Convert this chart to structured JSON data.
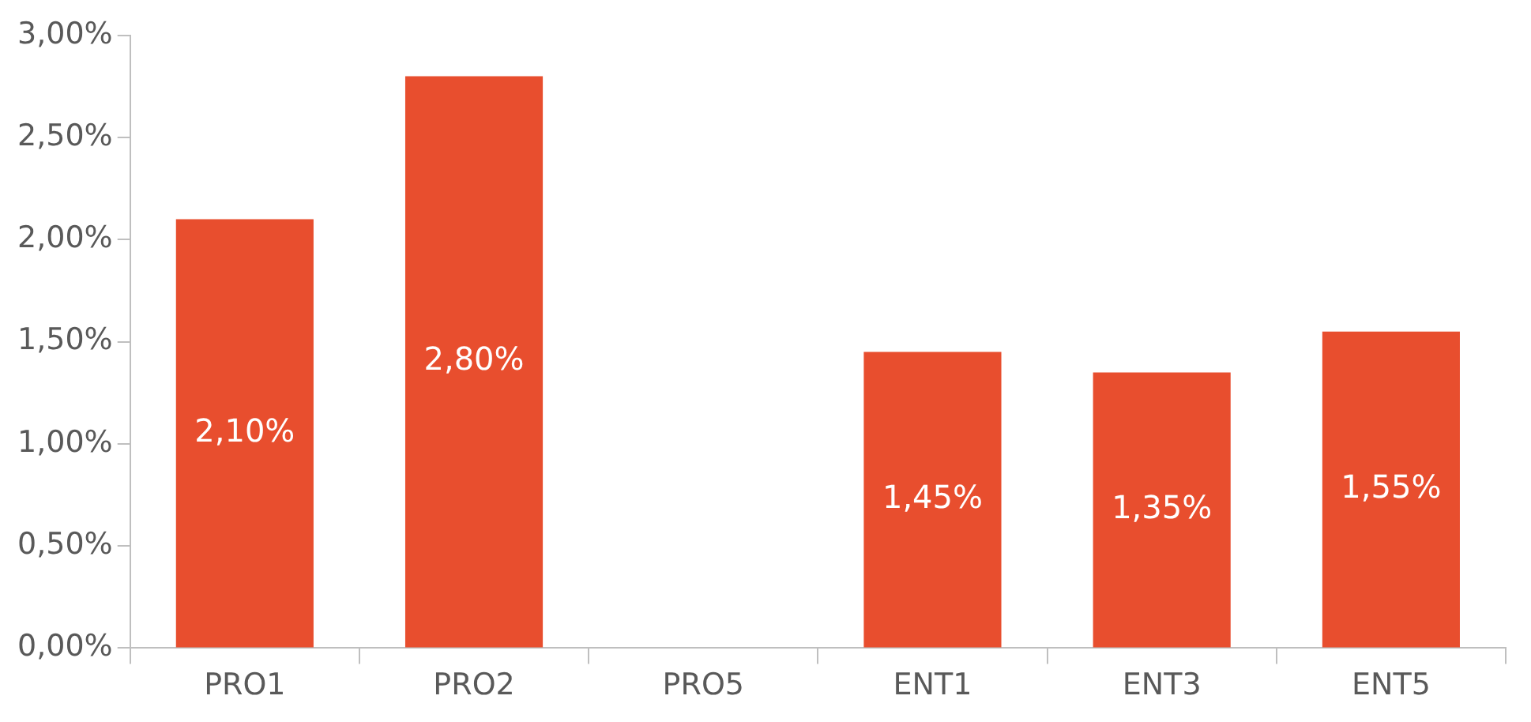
{
  "chart_data": {
    "type": "bar",
    "categories": [
      "PRO1",
      "PRO2",
      "PRO5",
      "ENT1",
      "ENT3",
      "ENT5"
    ],
    "values": [
      2.1,
      2.8,
      null,
      1.45,
      1.35,
      1.55
    ],
    "value_labels": [
      "2,10%",
      "2,80%",
      null,
      "1,45%",
      "1,35%",
      "1,55%"
    ],
    "color": "#e84e2e",
    "ylim": [
      0,
      3
    ],
    "yticks": [
      {
        "value": 0,
        "label": "0,00%"
      },
      {
        "value": 0.5,
        "label": "0,50%"
      },
      {
        "value": 1,
        "label": "1,00%"
      },
      {
        "value": 1.5,
        "label": "1,50%"
      },
      {
        "value": 2,
        "label": "2,00%"
      },
      {
        "value": 2.5,
        "label": "2,50%"
      },
      {
        "value": 3,
        "label": "3,00%"
      }
    ]
  }
}
